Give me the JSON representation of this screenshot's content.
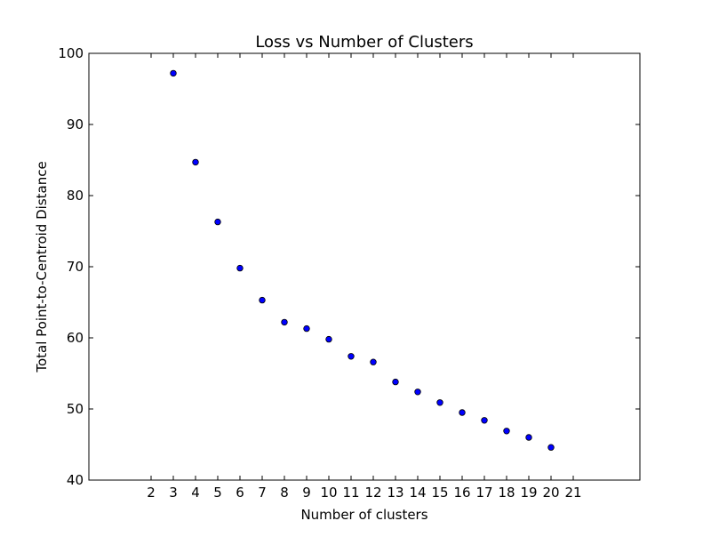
{
  "chart_data": {
    "type": "scatter",
    "title": "Loss vs Number of Clusters",
    "xlabel": "Number of clusters",
    "ylabel": "Total Point-to-Centroid Distance",
    "x_ticks": [
      "2",
      "3",
      "4",
      "5",
      "6",
      "7",
      "8",
      "9",
      "10",
      "11",
      "12",
      "13",
      "14",
      "15",
      "16",
      "17",
      "18",
      "19",
      "20",
      "21"
    ],
    "y_ticks": [
      "40",
      "50",
      "60",
      "70",
      "80",
      "90",
      "100"
    ],
    "xlim": [
      -0.8,
      24
    ],
    "ylim": [
      40,
      100
    ],
    "grid": false,
    "point_color": "#0000ff",
    "series": [
      {
        "x": [
          3,
          4,
          5,
          6,
          7,
          8,
          9,
          10,
          11,
          12,
          13,
          14,
          15,
          16,
          17,
          18,
          19,
          20
        ],
        "y": [
          97.2,
          84.7,
          76.3,
          69.8,
          65.3,
          62.2,
          61.3,
          59.8,
          57.4,
          56.6,
          53.8,
          52.4,
          50.9,
          49.5,
          48.4,
          46.9,
          46.0,
          44.6
        ]
      }
    ]
  }
}
